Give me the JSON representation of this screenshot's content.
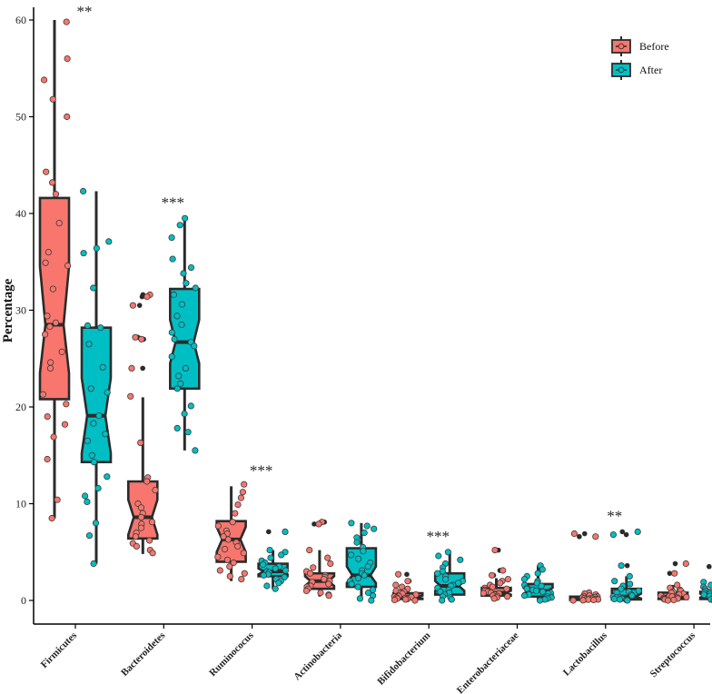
{
  "chart_data": {
    "type": "box",
    "title": "",
    "xlabel": "",
    "ylabel": "Percentage",
    "ylim": [
      -2.5,
      62
    ],
    "yticks": [
      0,
      10,
      20,
      30,
      40,
      50,
      60
    ],
    "categories": [
      "Firmicutes",
      "Bacteroidetes",
      "Ruminococus",
      "Actinobacteria",
      "Bifidobacterium",
      "Enterobacteriaceae",
      "Lactobacillus",
      "Streptococcus"
    ],
    "series": [
      {
        "name": "Before",
        "color": "#F8766D",
        "stats": [
          {
            "min": 8.5,
            "q1": 20.8,
            "median": 28.5,
            "q3": 41.6,
            "max": 60.0,
            "notch_lo": 23.5,
            "notch_hi": 34.5,
            "outliers": []
          },
          {
            "min": 4.8,
            "q1": 6.4,
            "median": 8.6,
            "q3": 12.3,
            "max": 21.0,
            "notch_lo": 6.8,
            "notch_hi": 10.4,
            "outliers": [
              24.0,
              27.0,
              27.2,
              30.5,
              31.4,
              31.6
            ]
          },
          {
            "min": 2.0,
            "q1": 4.0,
            "median": 6.3,
            "q3": 8.2,
            "max": 11.8,
            "notch_lo": 5.0,
            "notch_hi": 7.6,
            "outliers": []
          },
          {
            "min": 0.4,
            "q1": 1.2,
            "median": 2.0,
            "q3": 2.8,
            "max": 5.2,
            "notch_lo": 1.5,
            "notch_hi": 2.5,
            "outliers": [
              7.9,
              8.1
            ]
          },
          {
            "min": 0.0,
            "q1": 0.15,
            "median": 0.35,
            "q3": 0.75,
            "max": 1.5,
            "notch_lo": 0.2,
            "notch_hi": 0.5,
            "outliers": [
              2.0,
              2.7
            ]
          },
          {
            "min": 0.1,
            "q1": 0.5,
            "median": 0.8,
            "q3": 1.3,
            "max": 2.3,
            "notch_lo": 0.6,
            "notch_hi": 1.0,
            "outliers": [
              2.6,
              3.1,
              5.2
            ]
          },
          {
            "min": 0.0,
            "q1": 0.05,
            "median": 0.15,
            "q3": 0.4,
            "max": 0.8,
            "notch_lo": 0.08,
            "notch_hi": 0.25,
            "outliers": [
              6.6,
              6.9
            ]
          },
          {
            "min": 0.0,
            "q1": 0.15,
            "median": 0.4,
            "q3": 0.8,
            "max": 1.6,
            "notch_lo": 0.25,
            "notch_hi": 0.55,
            "outliers": [
              2.8,
              3.8
            ]
          }
        ]
      },
      {
        "name": "After",
        "color": "#00BFC4",
        "stats": [
          {
            "min": 3.8,
            "q1": 14.3,
            "median": 19.1,
            "q3": 28.2,
            "max": 42.3,
            "notch_lo": 15.2,
            "notch_hi": 23.0,
            "outliers": []
          },
          {
            "min": 15.5,
            "q1": 21.9,
            "median": 26.7,
            "q3": 32.2,
            "max": 39.5,
            "notch_lo": 24.5,
            "notch_hi": 29.0,
            "outliers": []
          },
          {
            "min": 1.2,
            "q1": 2.5,
            "median": 3.0,
            "q3": 3.8,
            "max": 5.2,
            "notch_lo": 2.7,
            "notch_hi": 3.3,
            "outliers": [
              7.1
            ]
          },
          {
            "min": 0.0,
            "q1": 1.4,
            "median": 2.6,
            "q3": 5.4,
            "max": 8.0,
            "notch_lo": 1.8,
            "notch_hi": 3.5,
            "outliers": []
          },
          {
            "min": 0.0,
            "q1": 0.6,
            "median": 1.5,
            "q3": 2.8,
            "max": 5.0,
            "notch_lo": 1.0,
            "notch_hi": 2.0,
            "outliers": []
          },
          {
            "min": 0.0,
            "q1": 0.4,
            "median": 1.0,
            "q3": 1.7,
            "max": 3.6,
            "notch_lo": 0.7,
            "notch_hi": 1.3,
            "outliers": []
          },
          {
            "min": 0.0,
            "q1": 0.1,
            "median": 0.4,
            "q3": 1.2,
            "max": 2.5,
            "notch_lo": 0.2,
            "notch_hi": 0.7,
            "outliers": [
              3.6,
              6.8,
              7.1
            ]
          },
          {
            "min": 0.0,
            "q1": 0.15,
            "median": 0.5,
            "q3": 0.9,
            "max": 1.9,
            "notch_lo": 0.3,
            "notch_hi": 0.7,
            "outliers": [
              3.5
            ]
          }
        ]
      }
    ],
    "points": {
      "Before": [
        [
          59.8,
          56.0,
          53.8,
          51.8,
          50.0,
          44.3,
          43.2,
          42.0,
          39.0,
          36.0,
          34.9,
          34.6,
          32.2,
          29.4,
          28.7,
          28.3,
          27.5,
          25.7,
          24.6,
          24.0,
          21.3,
          20.3,
          19.0,
          18.2,
          16.9,
          14.6,
          10.4,
          8.5
        ],
        [
          31.6,
          31.4,
          30.5,
          27.2,
          27.0,
          24.0,
          21.1,
          16.3,
          12.7,
          12.3,
          11.4,
          10.0,
          9.6,
          9.0,
          8.6,
          8.1,
          7.9,
          7.5,
          7.0,
          6.6,
          6.2,
          5.9,
          5.6,
          5.2,
          4.9
        ],
        [
          12.0,
          11.2,
          10.6,
          9.9,
          9.0,
          8.1,
          7.7,
          7.2,
          6.9,
          6.6,
          6.3,
          6.0,
          5.6,
          5.3,
          4.9,
          4.5,
          4.2,
          3.9,
          3.5,
          3.1,
          2.8,
          2.5,
          2.2
        ],
        [
          8.1,
          7.9,
          5.2,
          4.4,
          3.8,
          3.4,
          3.0,
          2.8,
          2.6,
          2.4,
          2.2,
          2.0,
          1.9,
          1.7,
          1.5,
          1.4,
          1.2,
          1.0,
          0.8,
          0.6,
          0.5
        ],
        [
          2.7,
          2.0,
          1.6,
          1.4,
          1.2,
          1.0,
          0.9,
          0.8,
          0.7,
          0.6,
          0.5,
          0.45,
          0.4,
          0.35,
          0.3,
          0.25,
          0.2,
          0.15,
          0.1,
          0.05,
          0.0
        ],
        [
          5.2,
          3.1,
          2.6,
          2.2,
          2.0,
          1.8,
          1.6,
          1.4,
          1.3,
          1.2,
          1.1,
          1.0,
          0.9,
          0.8,
          0.75,
          0.7,
          0.6,
          0.5,
          0.45,
          0.4,
          0.3,
          0.2
        ],
        [
          6.9,
          6.6,
          0.8,
          0.7,
          0.6,
          0.5,
          0.45,
          0.4,
          0.35,
          0.3,
          0.25,
          0.2,
          0.18,
          0.15,
          0.12,
          0.1,
          0.08,
          0.05,
          0.02,
          0.0
        ],
        [
          3.8,
          2.8,
          1.6,
          1.3,
          1.1,
          1.0,
          0.9,
          0.8,
          0.7,
          0.6,
          0.5,
          0.45,
          0.4,
          0.35,
          0.3,
          0.25,
          0.2,
          0.15,
          0.1,
          0.05,
          0.0
        ]
      ],
      "After": [
        [
          42.3,
          37.1,
          36.4,
          35.9,
          32.3,
          28.4,
          28.2,
          26.5,
          24.1,
          21.9,
          21.5,
          19.1,
          18.3,
          17.2,
          16.5,
          15.0,
          14.3,
          12.8,
          11.6,
          10.8,
          10.2,
          8.0,
          6.7,
          3.8
        ],
        [
          39.5,
          38.8,
          37.5,
          35.3,
          34.4,
          33.8,
          32.8,
          32.3,
          31.6,
          30.6,
          29.4,
          28.5,
          27.7,
          27.0,
          26.7,
          26.3,
          25.2,
          24.0,
          23.2,
          22.4,
          21.9,
          20.1,
          19.3,
          17.8,
          17.4,
          15.5
        ],
        [
          7.1,
          5.2,
          5.0,
          4.7,
          4.4,
          4.1,
          3.9,
          3.7,
          3.5,
          3.3,
          3.1,
          3.0,
          2.9,
          2.7,
          2.6,
          2.4,
          2.2,
          2.0,
          1.8,
          1.5,
          1.2
        ],
        [
          8.0,
          7.7,
          7.4,
          7.0,
          6.5,
          6.0,
          5.5,
          5.1,
          4.7,
          4.3,
          3.9,
          3.5,
          3.1,
          2.8,
          2.6,
          2.3,
          2.0,
          1.7,
          1.4,
          1.1,
          0.8,
          0.5,
          0.2,
          0.0
        ],
        [
          5.0,
          4.6,
          4.2,
          3.8,
          3.4,
          3.0,
          2.8,
          2.5,
          2.2,
          2.0,
          1.8,
          1.6,
          1.5,
          1.3,
          1.1,
          0.9,
          0.8,
          0.6,
          0.4,
          0.3,
          0.1,
          0.0
        ],
        [
          3.6,
          3.2,
          2.8,
          2.5,
          2.2,
          2.0,
          1.8,
          1.6,
          1.5,
          1.3,
          1.2,
          1.1,
          1.0,
          0.9,
          0.8,
          0.7,
          0.6,
          0.5,
          0.4,
          0.3,
          0.2,
          0.1,
          0.0
        ],
        [
          7.1,
          6.8,
          3.6,
          2.5,
          2.0,
          1.7,
          1.5,
          1.2,
          1.0,
          0.9,
          0.8,
          0.6,
          0.5,
          0.4,
          0.35,
          0.3,
          0.2,
          0.15,
          0.1,
          0.05,
          0.0
        ],
        [
          3.5,
          2.6,
          1.9,
          1.6,
          1.4,
          1.2,
          1.0,
          0.9,
          0.8,
          0.7,
          0.6,
          0.5,
          0.45,
          0.4,
          0.3,
          0.25,
          0.2,
          0.15,
          0.1,
          0.05,
          0.0
        ]
      ]
    },
    "significance": [
      {
        "category": "Firmicutes",
        "label": "**"
      },
      {
        "category": "Bacteroidetes",
        "label": "***"
      },
      {
        "category": "Ruminococus",
        "label": "***"
      },
      {
        "category": "Bifidobacterium",
        "label": "***"
      },
      {
        "category": "Lactobacillus",
        "label": "**"
      }
    ],
    "legend": {
      "position": "top-right",
      "entries": [
        "Before",
        "After"
      ]
    },
    "grid": false
  }
}
